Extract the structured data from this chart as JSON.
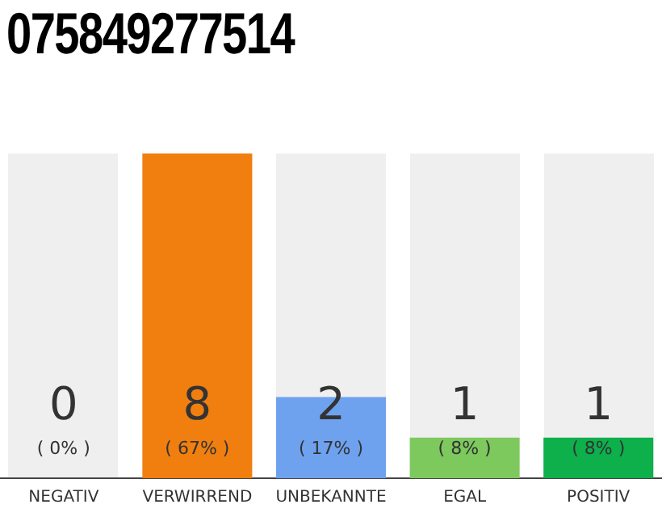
{
  "chart_data": {
    "type": "bar",
    "title": "075849277514",
    "categories": [
      "NEGATIV",
      "VERWIRREND",
      "UNBEKANNTE",
      "EGAL",
      "POSITIV"
    ],
    "values": [
      0,
      8,
      2,
      1,
      1
    ],
    "colors": [
      "#b0b0b0",
      "#f07f0f",
      "#6ea2ef",
      "#7dc95e",
      "#0db04b"
    ],
    "ylim": [
      0,
      8
    ],
    "data_labels": true,
    "grid": false,
    "legend": false,
    "tick_labels": "x",
    "annotations": [
      "( 0% )",
      "( 67% )",
      "( 17% )",
      "( 8% )",
      "( 8% )"
    ]
  }
}
